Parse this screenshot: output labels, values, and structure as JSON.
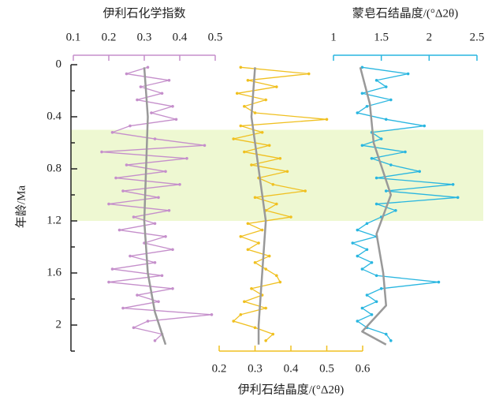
{
  "chart_data": {
    "type": "line",
    "ylabel": "年龄/Ma",
    "ylim": [
      0,
      2.2
    ],
    "yticks": [
      0,
      0.4,
      0.8,
      1.2,
      1.6,
      2.0
    ],
    "yminor_ticks": [
      0.2,
      0.6,
      1.0,
      1.4,
      1.8,
      2.2
    ],
    "band": [
      0.5,
      1.2
    ],
    "band_color": "#eef8d2",
    "panels": [
      {
        "title": "伊利石化学指数",
        "axis_position": "top",
        "color": "#c58fcb",
        "xlim": [
          0.1,
          0.5
        ],
        "xticks": [
          0.1,
          0.2,
          0.3,
          0.4,
          0.5
        ],
        "ages": [
          0.02,
          0.07,
          0.12,
          0.17,
          0.22,
          0.27,
          0.32,
          0.37,
          0.42,
          0.47,
          0.52,
          0.57,
          0.62,
          0.67,
          0.72,
          0.77,
          0.82,
          0.87,
          0.92,
          0.97,
          1.02,
          1.07,
          1.12,
          1.17,
          1.22,
          1.27,
          1.32,
          1.37,
          1.42,
          1.47,
          1.52,
          1.57,
          1.62,
          1.67,
          1.72,
          1.77,
          1.82,
          1.87,
          1.92,
          1.97,
          2.02,
          2.07,
          2.12
        ],
        "values": [
          0.31,
          0.25,
          0.37,
          0.29,
          0.35,
          0.28,
          0.38,
          0.32,
          0.39,
          0.26,
          0.21,
          0.33,
          0.47,
          0.18,
          0.42,
          0.25,
          0.36,
          0.22,
          0.4,
          0.24,
          0.34,
          0.2,
          0.37,
          0.27,
          0.33,
          0.23,
          0.36,
          0.3,
          0.38,
          0.26,
          0.33,
          0.21,
          0.35,
          0.2,
          0.38,
          0.28,
          0.34,
          0.24,
          0.49,
          0.31,
          0.27,
          0.35,
          0.33
        ],
        "trend_color": "#999999",
        "trend_ages": [
          0.02,
          0.4,
          0.8,
          1.2,
          1.6,
          1.9,
          2.15
        ],
        "trend_values": [
          0.3,
          0.31,
          0.305,
          0.3,
          0.31,
          0.33,
          0.36
        ]
      },
      {
        "title": "伊利石结晶度/(°Δ2θ)",
        "axis_position": "bottom",
        "color": "#f0c020",
        "xlim": [
          0.2,
          0.6
        ],
        "xticks": [
          0.2,
          0.3,
          0.4,
          0.5,
          0.6
        ],
        "ages": [
          0.02,
          0.07,
          0.12,
          0.17,
          0.22,
          0.27,
          0.32,
          0.37,
          0.42,
          0.47,
          0.52,
          0.57,
          0.62,
          0.67,
          0.72,
          0.77,
          0.82,
          0.87,
          0.92,
          0.97,
          1.02,
          1.07,
          1.12,
          1.17,
          1.22,
          1.27,
          1.32,
          1.37,
          1.42,
          1.47,
          1.52,
          1.57,
          1.62,
          1.67,
          1.72,
          1.77,
          1.82,
          1.87,
          1.92,
          1.97,
          2.02,
          2.07,
          2.12
        ],
        "values": [
          0.26,
          0.45,
          0.28,
          0.36,
          0.25,
          0.33,
          0.27,
          0.3,
          0.5,
          0.26,
          0.32,
          0.24,
          0.34,
          0.27,
          0.37,
          0.29,
          0.39,
          0.31,
          0.35,
          0.44,
          0.3,
          0.36,
          0.33,
          0.4,
          0.28,
          0.32,
          0.26,
          0.31,
          0.28,
          0.34,
          0.3,
          0.33,
          0.36,
          0.37,
          0.29,
          0.32,
          0.27,
          0.33,
          0.26,
          0.24,
          0.3,
          0.35,
          0.33
        ],
        "trend_color": "#999999",
        "trend_ages": [
          0.02,
          0.4,
          0.8,
          1.2,
          1.6,
          2.0,
          2.15
        ],
        "trend_values": [
          0.3,
          0.29,
          0.31,
          0.33,
          0.32,
          0.31,
          0.31
        ]
      },
      {
        "title": "蒙皂石结晶度/(°Δ2θ)",
        "axis_position": "top",
        "color": "#29b6e0",
        "xlim": [
          1,
          2.5
        ],
        "xticks": [
          1,
          1.5,
          2,
          2.5
        ],
        "ages": [
          0.02,
          0.07,
          0.12,
          0.17,
          0.22,
          0.27,
          0.32,
          0.37,
          0.42,
          0.47,
          0.52,
          0.57,
          0.62,
          0.67,
          0.72,
          0.77,
          0.82,
          0.87,
          0.92,
          0.97,
          1.02,
          1.07,
          1.12,
          1.17,
          1.22,
          1.27,
          1.32,
          1.37,
          1.42,
          1.47,
          1.52,
          1.57,
          1.62,
          1.67,
          1.72,
          1.77,
          1.82,
          1.87,
          1.92,
          1.97,
          2.02,
          2.07,
          2.12
        ],
        "values": [
          1.3,
          1.78,
          1.45,
          1.55,
          1.3,
          1.6,
          1.35,
          1.25,
          1.55,
          1.95,
          1.4,
          1.5,
          1.3,
          1.75,
          1.4,
          1.6,
          1.9,
          1.45,
          2.25,
          1.55,
          2.3,
          1.45,
          1.65,
          1.5,
          1.35,
          1.25,
          1.45,
          1.2,
          1.35,
          1.25,
          1.4,
          1.3,
          1.45,
          2.1,
          1.5,
          1.35,
          1.45,
          1.3,
          1.4,
          1.25,
          1.35,
          1.55,
          1.6
        ],
        "trend_color": "#999999",
        "trend_ages": [
          0.02,
          0.3,
          0.6,
          1.0,
          1.3,
          1.6,
          1.85,
          2.05,
          2.15
        ],
        "trend_values": [
          1.28,
          1.38,
          1.42,
          1.6,
          1.45,
          1.52,
          1.55,
          1.3,
          1.55
        ]
      }
    ]
  }
}
